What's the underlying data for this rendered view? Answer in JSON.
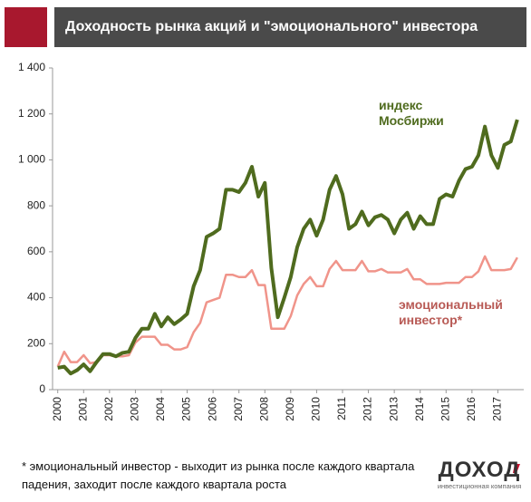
{
  "header": {
    "title": "Доходность рынка акций и \"эмоционального\" инвестора"
  },
  "chart_data": {
    "type": "line",
    "x": [
      2000,
      2000.25,
      2000.5,
      2000.75,
      2001,
      2001.25,
      2001.5,
      2001.75,
      2002,
      2002.25,
      2002.5,
      2002.75,
      2003,
      2003.25,
      2003.5,
      2003.75,
      2004,
      2004.25,
      2004.5,
      2004.75,
      2005,
      2005.25,
      2005.5,
      2005.75,
      2006,
      2006.25,
      2006.5,
      2006.75,
      2007,
      2007.25,
      2007.5,
      2007.75,
      2008,
      2008.25,
      2008.5,
      2008.75,
      2009,
      2009.25,
      2009.5,
      2009.75,
      2010,
      2010.25,
      2010.5,
      2010.75,
      2011,
      2011.25,
      2011.5,
      2011.75,
      2012,
      2012.25,
      2012.5,
      2012.75,
      2013,
      2013.25,
      2013.5,
      2013.75,
      2014,
      2014.25,
      2014.5,
      2014.75,
      2015,
      2015.25,
      2015.5,
      2015.75,
      2016,
      2016.25,
      2016.5,
      2016.75,
      2017,
      2017.25,
      2017.5,
      2017.75
    ],
    "series": [
      {
        "name": "индекс Мосбиржи",
        "color": "#4f6b1e",
        "values": [
          95,
          100,
          70,
          85,
          110,
          80,
          120,
          155,
          155,
          145,
          160,
          165,
          225,
          265,
          265,
          330,
          275,
          315,
          285,
          305,
          330,
          450,
          520,
          665,
          680,
          700,
          870,
          870,
          860,
          900,
          970,
          840,
          900,
          530,
          315,
          400,
          490,
          620,
          700,
          740,
          670,
          740,
          870,
          930,
          850,
          700,
          720,
          775,
          715,
          750,
          760,
          740,
          680,
          740,
          770,
          700,
          755,
          720,
          720,
          830,
          850,
          840,
          910,
          960,
          970,
          1020,
          1145,
          1020,
          965,
          1065,
          1080,
          1175
        ]
      },
      {
        "name": "эмоциональный инвестор*",
        "color": "#f0948a",
        "values": [
          100,
          165,
          120,
          120,
          150,
          115,
          120,
          150,
          150,
          145,
          145,
          150,
          205,
          230,
          230,
          230,
          195,
          195,
          175,
          175,
          185,
          250,
          290,
          380,
          390,
          400,
          500,
          500,
          490,
          490,
          520,
          455,
          455,
          265,
          265,
          265,
          320,
          410,
          460,
          490,
          450,
          450,
          525,
          560,
          520,
          520,
          520,
          560,
          515,
          515,
          525,
          510,
          510,
          510,
          525,
          480,
          480,
          460,
          460,
          460,
          465,
          465,
          465,
          490,
          490,
          515,
          580,
          520,
          520,
          520,
          525,
          575
        ]
      }
    ],
    "xlim": [
      1999.8,
      2018
    ],
    "xticks": [
      2000,
      2001,
      2002,
      2003,
      2004,
      2005,
      2006,
      2007,
      2008,
      2009,
      2010,
      2011,
      2012,
      2013,
      2014,
      2015,
      2016,
      2017
    ],
    "ylim": [
      0,
      1400
    ],
    "yticks": [
      0,
      200,
      400,
      600,
      800,
      {
        "value": 1000,
        "label": "1 000"
      },
      {
        "value": 1200,
        "label": "1 200"
      },
      {
        "value": 1400,
        "label": "1 400"
      }
    ],
    "grid": false,
    "footnote": "* эмоциональный инвестор - выходит из рынка после каждого квартала падения, заходит после каждого квартала роста"
  },
  "logo": {
    "name": "ДОХОД",
    "subtitle": "инвестиционная компания"
  }
}
